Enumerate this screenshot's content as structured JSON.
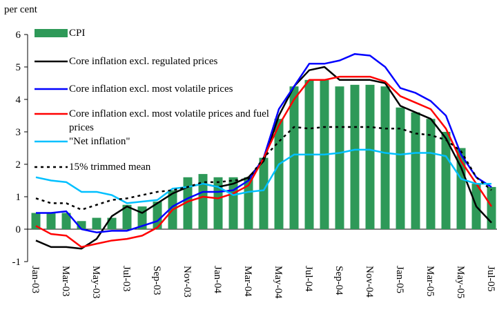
{
  "chart_data": {
    "type": "bar-line",
    "y_label": "per cent",
    "categories": [
      "Jan-03",
      null,
      "Mar-03",
      null,
      "May-03",
      null,
      "Jul-03",
      null,
      "Sep-03",
      null,
      "Nov-03",
      null,
      "Jan-04",
      null,
      "Mar-04",
      null,
      "May-04",
      null,
      "Jul-04",
      null,
      "Sep-04",
      null,
      "Nov-04",
      null,
      "Jan-05",
      null,
      "Mar-05",
      null,
      "May-05",
      null,
      "Jul-05"
    ],
    "ylim": [
      -1,
      6
    ],
    "yticks": [
      -1,
      0,
      1,
      2,
      3,
      4,
      5,
      6
    ],
    "series": [
      {
        "name": "CPI",
        "kind": "bar",
        "color": "#2e9958",
        "values": [
          0.5,
          0.5,
          0.5,
          0.25,
          0.35,
          0.35,
          0.75,
          0.7,
          0.85,
          1.2,
          1.6,
          1.7,
          1.6,
          1.6,
          1.6,
          2.2,
          3.4,
          4.4,
          4.6,
          4.6,
          4.4,
          4.45,
          4.45,
          4.4,
          3.75,
          3.6,
          3.4,
          3.0,
          2.5,
          1.4,
          1.3
        ]
      },
      {
        "name": "Core inflation excl. regulated prices",
        "kind": "line",
        "color": "#000000",
        "values": [
          -0.35,
          -0.55,
          -0.55,
          -0.6,
          -0.3,
          0.4,
          0.7,
          0.5,
          0.8,
          1.1,
          1.3,
          1.4,
          1.3,
          1.4,
          1.6,
          2.1,
          3.5,
          4.4,
          4.9,
          5.0,
          4.6,
          4.6,
          4.6,
          4.5,
          3.8,
          3.6,
          3.4,
          2.8,
          1.9,
          0.7,
          0.2
        ]
      },
      {
        "name": "Core inflation excl. most volatile prices",
        "kind": "line",
        "color": "#0000ff",
        "values": [
          0.5,
          0.5,
          0.55,
          0.0,
          -0.1,
          -0.05,
          -0.05,
          0.1,
          0.25,
          0.7,
          0.95,
          1.15,
          1.15,
          1.2,
          1.5,
          2.2,
          3.7,
          4.4,
          5.1,
          5.1,
          5.2,
          5.4,
          5.35,
          5.0,
          4.35,
          4.2,
          3.95,
          3.5,
          2.3,
          1.6,
          1.3
        ]
      },
      {
        "name": "Core inflation excl. most volatile prices and fuel prices",
        "kind": "line",
        "color": "#ff0000",
        "values": [
          0.1,
          -0.15,
          -0.2,
          -0.55,
          -0.45,
          -0.35,
          -0.3,
          -0.2,
          0.05,
          0.6,
          0.85,
          1.0,
          0.95,
          1.1,
          1.35,
          2.2,
          3.2,
          4.0,
          4.6,
          4.6,
          4.7,
          4.7,
          4.7,
          4.55,
          4.1,
          3.9,
          3.7,
          3.1,
          2.1,
          1.4,
          0.7
        ]
      },
      {
        "name": "\"Net inflation\"",
        "kind": "line",
        "color": "#00c0ff",
        "values": [
          1.6,
          1.5,
          1.45,
          1.15,
          1.15,
          1.05,
          0.8,
          0.85,
          0.9,
          1.25,
          1.3,
          1.4,
          1.3,
          1.05,
          1.15,
          1.2,
          2.0,
          2.3,
          2.3,
          2.3,
          2.35,
          2.45,
          2.45,
          2.35,
          2.3,
          2.35,
          2.35,
          2.25,
          1.55,
          1.4,
          1.4
        ]
      },
      {
        "name": "15% trimmed mean",
        "kind": "line",
        "dash": "dotted",
        "color": "#000000",
        "values": [
          0.95,
          0.8,
          0.8,
          0.6,
          0.75,
          0.9,
          0.95,
          1.05,
          1.15,
          1.2,
          1.3,
          1.45,
          1.45,
          1.5,
          1.55,
          2.2,
          2.7,
          3.15,
          3.1,
          3.15,
          3.15,
          3.15,
          3.15,
          3.1,
          3.1,
          2.95,
          2.9,
          2.75,
          2.4,
          1.6,
          1.2
        ]
      }
    ]
  }
}
